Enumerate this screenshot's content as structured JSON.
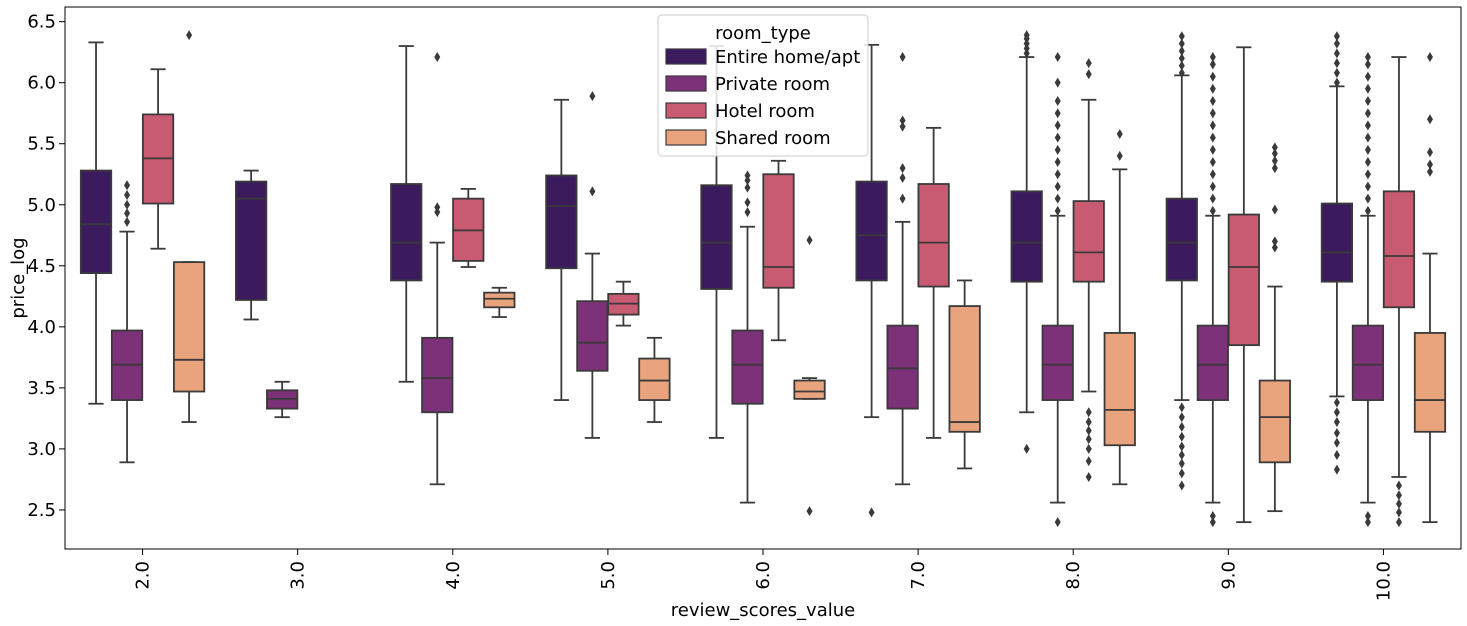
{
  "chart_data": {
    "type": "box",
    "xlabel": "review_scores_value",
    "ylabel": "price_log",
    "ylim": [
      2.18,
      6.62
    ],
    "yticks": [
      "2.5",
      "3.0",
      "3.5",
      "4.0",
      "4.5",
      "5.0",
      "5.5",
      "6.0",
      "6.5"
    ],
    "categories": [
      "2.0",
      "3.0",
      "4.0",
      "5.0",
      "6.0",
      "7.0",
      "8.0",
      "9.0",
      "10.0"
    ],
    "legend": {
      "title": "room_type",
      "position": "top-center"
    },
    "series": [
      {
        "name": "Entire home/apt",
        "color": "#3b1a5e",
        "boxes": [
          {
            "category": "2.0",
            "min": 3.37,
            "q1": 4.44,
            "median": 4.84,
            "q3": 5.28,
            "max": 6.33,
            "outliers": []
          },
          {
            "category": "3.0",
            "min": 4.06,
            "q1": 4.22,
            "median": 5.05,
            "q3": 5.19,
            "max": 5.28,
            "outliers": []
          },
          {
            "category": "4.0",
            "min": 3.55,
            "q1": 4.38,
            "median": 4.69,
            "q3": 5.17,
            "max": 6.3,
            "outliers": []
          },
          {
            "category": "5.0",
            "min": 3.4,
            "q1": 4.48,
            "median": 4.99,
            "q3": 5.24,
            "max": 5.86,
            "outliers": []
          },
          {
            "category": "6.0",
            "min": 3.09,
            "q1": 4.31,
            "median": 4.69,
            "q3": 5.16,
            "max": 6.3,
            "outliers": []
          },
          {
            "category": "7.0",
            "min": 3.26,
            "q1": 4.38,
            "median": 4.75,
            "q3": 5.19,
            "max": 6.31,
            "outliers": [
              2.48
            ]
          },
          {
            "category": "8.0",
            "min": 3.3,
            "q1": 4.37,
            "median": 4.69,
            "q3": 5.11,
            "max": 6.21,
            "outliers": [
              3.0,
              6.24,
              6.28,
              6.32,
              6.36,
              6.39
            ]
          },
          {
            "category": "9.0",
            "min": 3.4,
            "q1": 4.38,
            "median": 4.69,
            "q3": 5.05,
            "max": 6.06,
            "outliers": [
              2.7,
              2.8,
              2.88,
              2.95,
              3.02,
              3.1,
              3.18,
              3.26,
              3.34,
              6.08,
              6.14,
              6.2,
              6.26,
              6.32,
              6.38
            ]
          },
          {
            "category": "10.0",
            "min": 3.43,
            "q1": 4.37,
            "median": 4.61,
            "q3": 5.01,
            "max": 5.97,
            "outliers": [
              2.83,
              2.95,
              3.05,
              3.13,
              3.22,
              3.3,
              3.38,
              6.0,
              6.08,
              6.16,
              6.24,
              6.32,
              6.38
            ]
          }
        ]
      },
      {
        "name": "Private room",
        "color": "#7d3178",
        "boxes": [
          {
            "category": "2.0",
            "min": 2.89,
            "q1": 3.4,
            "median": 3.69,
            "q3": 3.97,
            "max": 4.78,
            "outliers": [
              4.86,
              4.93,
              5.0,
              5.08,
              5.16
            ]
          },
          {
            "category": "3.0",
            "min": 3.26,
            "q1": 3.33,
            "median": 3.41,
            "q3": 3.48,
            "max": 3.55,
            "outliers": []
          },
          {
            "category": "4.0",
            "min": 2.71,
            "q1": 3.3,
            "median": 3.58,
            "q3": 3.91,
            "max": 4.69,
            "outliers": [
              4.94,
              4.98,
              6.21
            ]
          },
          {
            "category": "5.0",
            "min": 3.09,
            "q1": 3.64,
            "median": 3.87,
            "q3": 4.21,
            "max": 4.6,
            "outliers": [
              5.11,
              5.89
            ]
          },
          {
            "category": "6.0",
            "min": 2.56,
            "q1": 3.37,
            "median": 3.69,
            "q3": 3.97,
            "max": 4.82,
            "outliers": [
              4.94,
              5.02,
              5.14,
              5.2,
              5.24
            ]
          },
          {
            "category": "7.0",
            "min": 2.71,
            "q1": 3.33,
            "median": 3.66,
            "q3": 4.01,
            "max": 4.86,
            "outliers": [
              5.05,
              5.22,
              5.3,
              5.64,
              5.69,
              6.21
            ]
          },
          {
            "category": "8.0",
            "min": 2.56,
            "q1": 3.4,
            "median": 3.69,
            "q3": 4.01,
            "max": 4.91,
            "outliers": [
              2.4,
              4.95,
              5.05,
              5.15,
              5.25,
              5.35,
              5.45,
              5.55,
              5.65,
              5.75,
              5.85,
              6.0,
              6.21
            ]
          },
          {
            "category": "9.0",
            "min": 2.56,
            "q1": 3.4,
            "median": 3.69,
            "q3": 4.01,
            "max": 4.91,
            "outliers": [
              2.4,
              2.45,
              4.95,
              5.05,
              5.15,
              5.25,
              5.35,
              5.45,
              5.55,
              5.65,
              5.75,
              5.85,
              5.95,
              6.05,
              6.15,
              6.21
            ]
          },
          {
            "category": "10.0",
            "min": 2.56,
            "q1": 3.4,
            "median": 3.69,
            "q3": 4.01,
            "max": 4.91,
            "outliers": [
              2.4,
              2.45,
              4.95,
              5.05,
              5.15,
              5.25,
              5.35,
              5.45,
              5.55,
              5.65,
              5.75,
              5.85,
              5.95,
              6.05,
              6.15,
              6.21
            ]
          }
        ]
      },
      {
        "name": "Hotel room",
        "color": "#c85a72",
        "boxes": [
          {
            "category": "2.0",
            "min": 4.64,
            "q1": 5.01,
            "median": 5.38,
            "q3": 5.74,
            "max": 6.11,
            "outliers": []
          },
          {
            "category": "4.0",
            "min": 4.49,
            "q1": 4.54,
            "median": 4.79,
            "q3": 5.05,
            "max": 5.13,
            "outliers": []
          },
          {
            "category": "5.0",
            "min": 4.01,
            "q1": 4.1,
            "median": 4.19,
            "q3": 4.27,
            "max": 4.37,
            "outliers": []
          },
          {
            "category": "6.0",
            "min": 3.89,
            "q1": 4.32,
            "median": 4.49,
            "q3": 5.25,
            "max": 5.36,
            "outliers": []
          },
          {
            "category": "7.0",
            "min": 3.09,
            "q1": 4.33,
            "median": 4.69,
            "q3": 5.17,
            "max": 5.63,
            "outliers": []
          },
          {
            "category": "8.0",
            "min": 3.47,
            "q1": 4.37,
            "median": 4.61,
            "q3": 5.03,
            "max": 5.86,
            "outliers": [
              2.77,
              2.9,
              3.0,
              3.08,
              3.15,
              3.22,
              3.3,
              6.07,
              6.16
            ]
          },
          {
            "category": "9.0",
            "min": 2.4,
            "q1": 3.85,
            "median": 4.49,
            "q3": 4.92,
            "max": 6.29,
            "outliers": []
          },
          {
            "category": "10.0",
            "min": 2.77,
            "q1": 4.16,
            "median": 4.58,
            "q3": 5.11,
            "max": 6.21,
            "outliers": [
              2.4,
              2.48,
              2.55,
              2.62,
              2.7
            ]
          }
        ]
      },
      {
        "name": "Shared room",
        "color": "#eaa47d",
        "boxes": [
          {
            "category": "2.0",
            "min": 3.22,
            "q1": 3.47,
            "median": 3.73,
            "q3": 4.53,
            "max": 4.53,
            "outliers": [
              6.39
            ]
          },
          {
            "category": "4.0",
            "min": 4.08,
            "q1": 4.16,
            "median": 4.23,
            "q3": 4.28,
            "max": 4.32,
            "outliers": []
          },
          {
            "category": "5.0",
            "min": 3.22,
            "q1": 3.4,
            "median": 3.56,
            "q3": 3.74,
            "max": 3.91,
            "outliers": []
          },
          {
            "category": "6.0",
            "min": 3.41,
            "q1": 3.41,
            "median": 3.47,
            "q3": 3.56,
            "max": 3.58,
            "outliers": [
              2.49,
              4.71
            ]
          },
          {
            "category": "7.0",
            "min": 2.84,
            "q1": 3.14,
            "median": 3.22,
            "q3": 4.17,
            "max": 4.38,
            "outliers": []
          },
          {
            "category": "8.0",
            "min": 2.71,
            "q1": 3.03,
            "median": 3.32,
            "q3": 3.95,
            "max": 5.29,
            "outliers": [
              5.4,
              5.58
            ]
          },
          {
            "category": "9.0",
            "min": 2.49,
            "q1": 2.89,
            "median": 3.26,
            "q3": 3.56,
            "max": 4.33,
            "outliers": [
              4.65,
              4.7,
              4.96,
              5.3,
              5.36,
              5.42,
              5.47
            ]
          },
          {
            "category": "10.0",
            "min": 2.4,
            "q1": 3.14,
            "median": 3.4,
            "q3": 3.95,
            "max": 4.6,
            "outliers": [
              5.27,
              5.33,
              5.43,
              5.7,
              6.21
            ]
          }
        ]
      }
    ]
  }
}
